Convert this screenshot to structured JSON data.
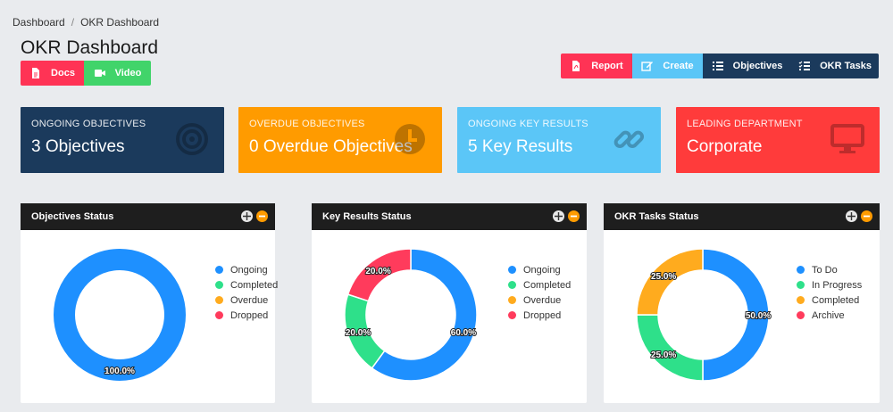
{
  "breadcrumb": {
    "items": [
      "Dashboard",
      "OKR Dashboard"
    ],
    "separator": "/"
  },
  "page": {
    "title": "OKR Dashboard"
  },
  "left_buttons": {
    "docs": "Docs",
    "video": "Video"
  },
  "toolbar": {
    "report": "Report",
    "create": "Create",
    "objectives": "Objectives",
    "okr_tasks": "OKR Tasks"
  },
  "cards": [
    {
      "label": "Ongoing Objectives",
      "value": "3 Objectives",
      "icon": "target-icon",
      "color": "#1b3a5c"
    },
    {
      "label": "Overdue Objectives",
      "value": "0 Overdue Objectives",
      "icon": "clock-icon",
      "color": "#ff9b00"
    },
    {
      "label": "Ongoing Key Results",
      "value": "5 Key Results",
      "icon": "link-icon",
      "color": "#5bc6f7"
    },
    {
      "label": "Leading Department",
      "value": "Corporate",
      "icon": "monitor-icon",
      "color": "#ff3b3b"
    }
  ],
  "charts": [
    {
      "title": "Objectives Status",
      "legend": [
        {
          "label": "Ongoing",
          "color": "#1e90ff"
        },
        {
          "label": "Completed",
          "color": "#2ee08a"
        },
        {
          "label": "Overdue",
          "color": "#ffab1e"
        },
        {
          "label": "Dropped",
          "color": "#ff3b5c"
        }
      ],
      "slices": [
        100,
        0,
        0,
        0
      ],
      "labels": [
        "100.0%",
        "",
        "",
        ""
      ]
    },
    {
      "title": "Key Results Status",
      "legend": [
        {
          "label": "Ongoing",
          "color": "#1e90ff"
        },
        {
          "label": "Completed",
          "color": "#2ee08a"
        },
        {
          "label": "Overdue",
          "color": "#ffab1e"
        },
        {
          "label": "Dropped",
          "color": "#ff3b5c"
        }
      ],
      "slices": [
        60,
        20,
        0,
        20
      ],
      "labels": [
        "60.0%",
        "20.0%",
        "",
        "20.0%"
      ]
    },
    {
      "title": "OKR Tasks Status",
      "legend": [
        {
          "label": "To Do",
          "color": "#1e90ff"
        },
        {
          "label": "In Progress",
          "color": "#2ee08a"
        },
        {
          "label": "Completed",
          "color": "#ffab1e"
        },
        {
          "label": "Archive",
          "color": "#ff3b5c"
        }
      ],
      "slices": [
        50,
        25,
        25,
        0
      ],
      "labels": [
        "50.0%",
        "25.0%",
        "25.0%",
        ""
      ]
    }
  ]
}
